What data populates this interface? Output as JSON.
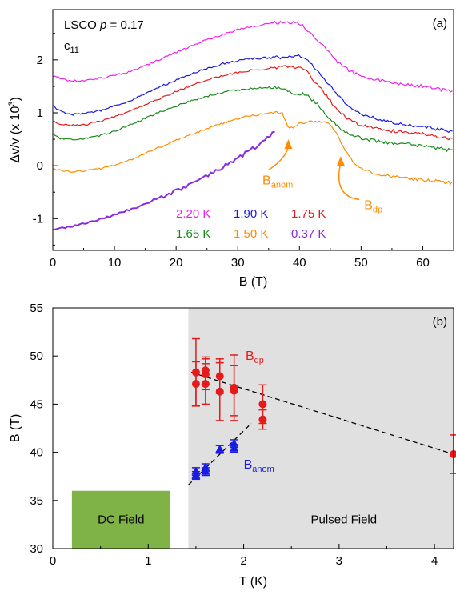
{
  "chart_data": [
    {
      "type": "line",
      "panel_label": "(a)",
      "sample_label_prefix": "LSCO",
      "sample_label_p": "p",
      "sample_label_value": "= 0.17",
      "mode_label_main": "c",
      "mode_label_sub": "11",
      "xlabel": "B (T)",
      "ylabel_main": "Δv/v (x 10",
      "ylabel_sup": "3",
      "ylabel_end": ")",
      "xlim": [
        0,
        65
      ],
      "ylim": [
        -1.6,
        2.95
      ],
      "xticks": [
        0,
        10,
        20,
        30,
        40,
        50,
        60
      ],
      "yticks": [
        -1,
        0,
        1,
        2
      ],
      "series": [
        {
          "name": "2.20 K",
          "color": "#ee22ee",
          "x": [
            0,
            1,
            2,
            3,
            5,
            8,
            12,
            16,
            20,
            24,
            28,
            31,
            34,
            36,
            38,
            39.5,
            40.5,
            41.5,
            43,
            44.5,
            46,
            48,
            50,
            53,
            56,
            60,
            65
          ],
          "y": [
            1.7,
            1.66,
            1.62,
            1.6,
            1.61,
            1.66,
            1.76,
            1.94,
            2.14,
            2.34,
            2.5,
            2.6,
            2.66,
            2.7,
            2.72,
            2.7,
            2.64,
            2.55,
            2.38,
            2.18,
            1.98,
            1.8,
            1.7,
            1.62,
            1.56,
            1.5,
            1.4
          ]
        },
        {
          "name": "1.90 K",
          "color": "#1a1ae6",
          "x": [
            0,
            0.6,
            1.2,
            2,
            3,
            5,
            8,
            12,
            16,
            20,
            24,
            28,
            32,
            35,
            37,
            39,
            40.5,
            41.5,
            43,
            44.5,
            46,
            48,
            50,
            53,
            56,
            60,
            65
          ],
          "y": [
            1.15,
            1.08,
            1.03,
            1.0,
            0.97,
            0.98,
            1.05,
            1.2,
            1.42,
            1.62,
            1.8,
            1.94,
            2.02,
            2.04,
            2.05,
            2.07,
            2.06,
            1.98,
            1.8,
            1.58,
            1.35,
            1.12,
            0.98,
            0.88,
            0.8,
            0.74,
            0.64
          ]
        },
        {
          "name": "1.75 K",
          "color": "#e61a1a",
          "x": [
            0,
            1,
            2,
            3,
            5,
            8,
            12,
            16,
            20,
            24,
            28,
            32,
            35,
            37,
            39,
            40.5,
            41.5,
            43,
            44.5,
            46,
            48,
            50,
            53,
            56,
            60,
            65
          ],
          "y": [
            0.85,
            0.8,
            0.77,
            0.76,
            0.77,
            0.85,
            1.0,
            1.2,
            1.4,
            1.58,
            1.72,
            1.8,
            1.84,
            1.86,
            1.87,
            1.85,
            1.74,
            1.52,
            1.3,
            1.08,
            0.88,
            0.76,
            0.69,
            0.64,
            0.6,
            0.5
          ]
        },
        {
          "name": "1.65 K",
          "color": "#1a8a1a",
          "x": [
            0,
            0.6,
            1.2,
            2,
            3,
            5,
            8,
            12,
            16,
            20,
            24,
            28,
            32,
            35,
            37,
            38.5,
            39.5,
            40.5,
            41.5,
            43,
            44.5,
            46,
            48,
            50,
            53,
            56,
            60,
            65
          ],
          "y": [
            0.62,
            0.56,
            0.52,
            0.5,
            0.49,
            0.51,
            0.58,
            0.74,
            0.95,
            1.13,
            1.28,
            1.4,
            1.46,
            1.48,
            1.47,
            1.4,
            1.32,
            1.36,
            1.3,
            1.15,
            0.95,
            0.76,
            0.6,
            0.52,
            0.46,
            0.42,
            0.38,
            0.28
          ]
        },
        {
          "name": "1.50 K",
          "color": "#ff8c00",
          "x": [
            0,
            1,
            2,
            3,
            5,
            8,
            12,
            16,
            20,
            24,
            28,
            31,
            34,
            36,
            37.2,
            38,
            38.8,
            40,
            41.5,
            43,
            44.5,
            45.5,
            46.5,
            47.5,
            49,
            51,
            54,
            57,
            61,
            65
          ],
          "y": [
            -0.05,
            -0.08,
            -0.1,
            -0.11,
            -0.1,
            -0.05,
            0.08,
            0.28,
            0.48,
            0.66,
            0.82,
            0.92,
            0.98,
            1.0,
            0.98,
            0.75,
            0.72,
            0.78,
            0.84,
            0.84,
            0.8,
            0.7,
            0.5,
            0.28,
            0.05,
            -0.1,
            -0.18,
            -0.23,
            -0.28,
            -0.33
          ]
        },
        {
          "name": "0.37 K",
          "color": "#8a2be2",
          "x": [
            0,
            2,
            4,
            6,
            8,
            10,
            12,
            15,
            18,
            21,
            24,
            27,
            30,
            33,
            36
          ],
          "y": [
            -1.2,
            -1.17,
            -1.12,
            -1.06,
            -1.0,
            -0.93,
            -0.85,
            -0.72,
            -0.58,
            -0.42,
            -0.26,
            -0.07,
            0.14,
            0.37,
            0.62
          ]
        }
      ],
      "annotations": [
        {
          "text_main": "B",
          "text_sub": "anom",
          "color": "#ff8c00",
          "x": 34,
          "y": -0.35,
          "arrow_to": [
            38.2,
            0.5
          ]
        },
        {
          "text_main": "B",
          "text_sub": "dp",
          "color": "#ff8c00",
          "x": 50.5,
          "y": -0.82,
          "arrow_to": [
            46.7,
            0.18
          ]
        }
      ],
      "legend": {
        "placement": "bottom-center"
      }
    },
    {
      "type": "scatter",
      "panel_label": "(b)",
      "xlabel": "T (K)",
      "ylabel": "B (T)",
      "xlim": [
        0,
        4.2
      ],
      "ylim": [
        30,
        55
      ],
      "xticks": [
        0,
        1,
        2,
        3,
        4
      ],
      "yticks": [
        30,
        35,
        40,
        45,
        50,
        55
      ],
      "regions": [
        {
          "label": "DC Field",
          "x": [
            0.2,
            1.23
          ],
          "y": [
            30,
            36
          ],
          "color": "#7fb347"
        },
        {
          "label": "Pulsed Field",
          "x": [
            1.42,
            4.2
          ],
          "y": [
            30,
            55
          ],
          "color": "#e0e0e0"
        }
      ],
      "series": [
        {
          "name_main": "B",
          "name_sub": "dp",
          "color": "#e61a1a",
          "marker": "circle",
          "points": [
            {
              "x": 1.5,
              "y": 48.3,
              "err": 3.5
            },
            {
              "x": 1.5,
              "y": 47.1,
              "err": 2.3
            },
            {
              "x": 1.6,
              "y": 48.5,
              "err": 1.4
            },
            {
              "x": 1.6,
              "y": 47.1,
              "err": 2.1
            },
            {
              "x": 1.6,
              "y": 48.1,
              "err": 1.6
            },
            {
              "x": 1.75,
              "y": 47.9,
              "err": 1.8
            },
            {
              "x": 1.75,
              "y": 46.3,
              "err": 3.0
            },
            {
              "x": 1.9,
              "y": 46.7,
              "err": 3.4
            },
            {
              "x": 1.9,
              "y": 46.4,
              "err": 2.6
            },
            {
              "x": 2.2,
              "y": 45.0,
              "err": 2.0
            },
            {
              "x": 2.2,
              "y": 43.4,
              "err": 1.0
            },
            {
              "x": 4.2,
              "y": 39.8,
              "err": 2.0
            }
          ]
        },
        {
          "name_main": "B",
          "name_sub": "anom",
          "color": "#1a1ae6",
          "marker": "triangle",
          "points": [
            {
              "x": 1.5,
              "y": 37.6,
              "err": 0.4
            },
            {
              "x": 1.5,
              "y": 38.0,
              "err": 0.4
            },
            {
              "x": 1.6,
              "y": 38.0,
              "err": 0.4
            },
            {
              "x": 1.6,
              "y": 38.4,
              "err": 0.4
            },
            {
              "x": 1.75,
              "y": 40.3,
              "err": 0.4
            },
            {
              "x": 1.9,
              "y": 40.4,
              "err": 0.4
            },
            {
              "x": 1.9,
              "y": 40.9,
              "err": 0.4
            }
          ]
        }
      ],
      "fit_lines": [
        {
          "x": [
            1.45,
            4.2
          ],
          "y": [
            48.3,
            39.8
          ]
        },
        {
          "x": [
            1.42,
            2.08
          ],
          "y": [
            36.6,
            43.0
          ]
        }
      ]
    }
  ]
}
